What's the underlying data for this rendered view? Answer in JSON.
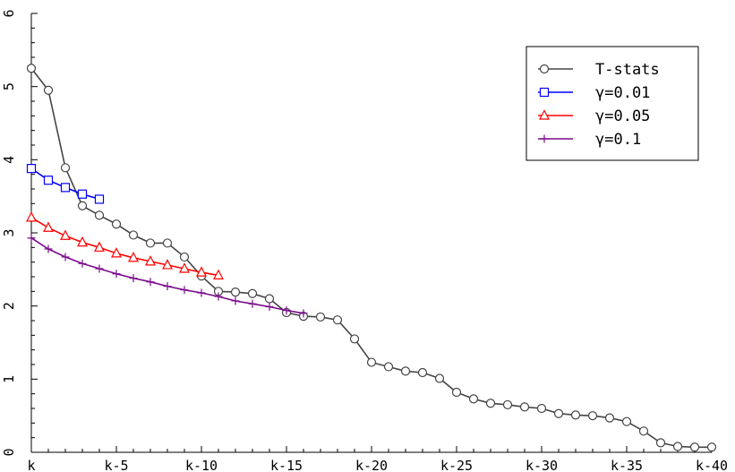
{
  "chart_data": {
    "type": "line",
    "title": "",
    "xlabel": "",
    "ylabel": "",
    "x_tick_labels": [
      "k",
      "k-5",
      "k-10",
      "k-15",
      "k-20",
      "k-25",
      "k-30",
      "k-35",
      "k-40"
    ],
    "x_tick_values": [
      0,
      5,
      10,
      15,
      20,
      25,
      30,
      35,
      40
    ],
    "y_tick_labels": [
      "0",
      "1",
      "2",
      "3",
      "4",
      "5",
      "6"
    ],
    "y_tick_values": [
      0,
      1,
      2,
      3,
      4,
      5,
      6
    ],
    "xlim": [
      0,
      40
    ],
    "ylim": [
      0,
      6
    ],
    "grid": false,
    "legend_position": "top-right",
    "series": [
      {
        "name": "T-stats",
        "color": "#444444",
        "marker": "circle",
        "x": [
          0,
          1,
          2,
          3,
          4,
          5,
          6,
          7,
          8,
          9,
          10,
          11,
          12,
          13,
          14,
          15,
          16,
          17,
          18,
          19,
          20,
          21,
          22,
          23,
          24,
          25,
          26,
          27,
          28,
          29,
          30,
          31,
          32,
          33,
          34,
          35,
          36,
          37,
          38,
          39,
          40
        ],
        "values": [
          5.25,
          4.95,
          3.89,
          3.37,
          3.24,
          3.12,
          2.97,
          2.86,
          2.86,
          2.67,
          2.41,
          2.2,
          2.19,
          2.17,
          2.1,
          1.91,
          1.86,
          1.85,
          1.81,
          1.55,
          1.23,
          1.17,
          1.11,
          1.09,
          1.01,
          0.82,
          0.73,
          0.67,
          0.65,
          0.62,
          0.6,
          0.53,
          0.51,
          0.5,
          0.47,
          0.42,
          0.29,
          0.13,
          0.08,
          0.07,
          0.07
        ]
      },
      {
        "name": "γ=0.01",
        "color": "#0000ff",
        "marker": "square",
        "x": [
          0,
          1,
          2,
          3,
          4
        ],
        "values": [
          3.88,
          3.72,
          3.62,
          3.53,
          3.46
        ]
      },
      {
        "name": "γ=0.05",
        "color": "#ff0000",
        "marker": "triangle",
        "x": [
          0,
          1,
          2,
          3,
          4,
          5,
          6,
          7,
          8,
          9,
          10,
          11
        ],
        "values": [
          3.21,
          3.07,
          2.96,
          2.87,
          2.8,
          2.72,
          2.66,
          2.61,
          2.56,
          2.51,
          2.46,
          2.42
        ]
      },
      {
        "name": "γ=0.1",
        "color": "#7a0a8c",
        "marker": "plus",
        "x": [
          0,
          1,
          2,
          3,
          4,
          5,
          6,
          7,
          8,
          9,
          10,
          11,
          12,
          13,
          14,
          15,
          16
        ],
        "values": [
          2.93,
          2.78,
          2.67,
          2.58,
          2.51,
          2.44,
          2.38,
          2.33,
          2.27,
          2.22,
          2.18,
          2.13,
          2.07,
          2.03,
          1.99,
          1.94,
          1.9
        ]
      }
    ]
  }
}
